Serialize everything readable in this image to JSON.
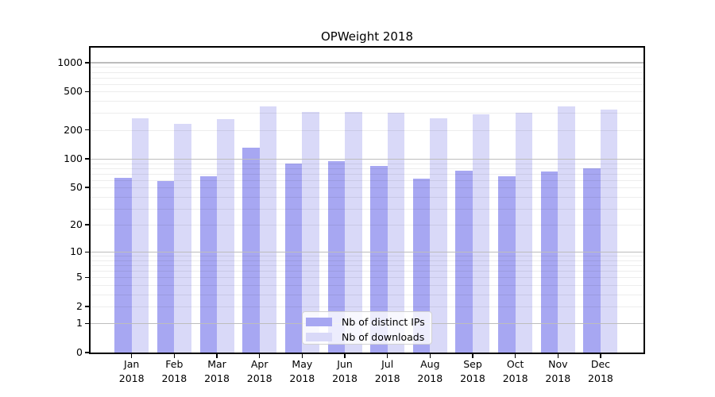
{
  "title": "OPWeight 2018",
  "colors": {
    "distinct_ips": "#a7a7f2",
    "downloads": "#d9d9f8",
    "grid_major": "#bdbdbd",
    "grid_minor": "rgba(0,0,0,0.07)",
    "spine": "#000000",
    "legend_background": "rgba(255,255,255,0.8)",
    "legend_border": "#d2d2d2"
  },
  "legend": {
    "items": [
      {
        "label": "Nb of distinct IPs",
        "color_key": "distinct_ips"
      },
      {
        "label": "Nb of downloads",
        "color_key": "downloads"
      }
    ]
  },
  "axes": {
    "y_ticks": [
      0,
      1,
      2,
      5,
      10,
      20,
      50,
      100,
      200,
      500,
      1000
    ],
    "y_scale": "log1p",
    "x_months": [
      "Jan",
      "Feb",
      "Mar",
      "Apr",
      "May",
      "Jun",
      "Jul",
      "Aug",
      "Sep",
      "Oct",
      "Nov",
      "Dec"
    ],
    "year": "2018"
  },
  "chart_data": {
    "type": "bar",
    "title": "OPWeight 2018",
    "categories": [
      "Jan 2018",
      "Feb 2018",
      "Mar 2018",
      "Apr 2018",
      "May 2018",
      "Jun 2018",
      "Jul 2018",
      "Aug 2018",
      "Sep 2018",
      "Oct 2018",
      "Nov 2018",
      "Dec 2018"
    ],
    "series": [
      {
        "name": "Nb of distinct IPs",
        "values": [
          63,
          59,
          66,
          130,
          90,
          94,
          84,
          62,
          75,
          66,
          74,
          80
        ]
      },
      {
        "name": "Nb of downloads",
        "values": [
          262,
          230,
          260,
          350,
          310,
          305,
          300,
          265,
          290,
          300,
          350,
          323
        ]
      }
    ],
    "xlabel": "",
    "ylabel": "",
    "y_ticks": [
      0,
      1,
      2,
      5,
      10,
      20,
      50,
      100,
      200,
      500,
      1000
    ],
    "y_scale": "log1p",
    "ylim": [
      0,
      1430
    ],
    "grid": true,
    "legend_position": "lower center"
  }
}
